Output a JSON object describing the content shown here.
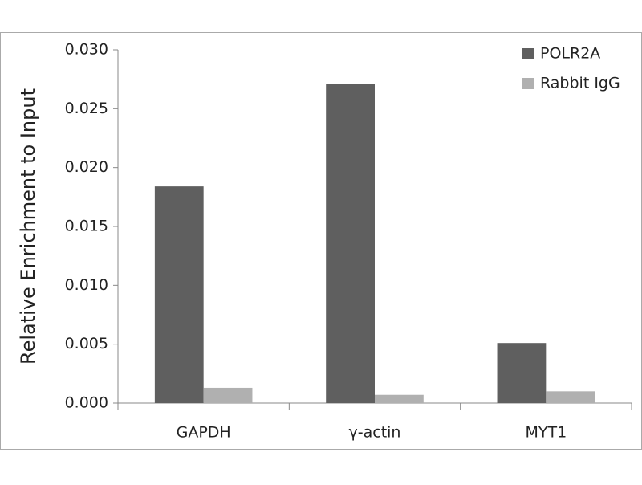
{
  "chart_data": {
    "type": "bar",
    "y_label": "Relative Enrichment to Input",
    "categories": [
      "GAPDH",
      "γ-actin",
      "MYT1"
    ],
    "series": [
      {
        "name": "POLR2A",
        "color": "#5f5f5f",
        "values": [
          0.0184,
          0.0271,
          0.0051
        ]
      },
      {
        "name": "Rabbit IgG",
        "color": "#b0b0b0",
        "values": [
          0.0013,
          0.0007,
          0.001
        ]
      }
    ],
    "ylim": [
      0,
      0.03
    ],
    "yticks": [
      {
        "value": 0,
        "label": "0.000"
      },
      {
        "value": 0.005,
        "label": "0.005"
      },
      {
        "value": 0.01,
        "label": "0.010"
      },
      {
        "value": 0.015,
        "label": "0.015"
      },
      {
        "value": 0.02,
        "label": "0.020"
      },
      {
        "value": 0.025,
        "label": "0.025"
      },
      {
        "value": 0.03,
        "label": "0.030"
      }
    ],
    "grid": false,
    "legend": "top-right"
  }
}
